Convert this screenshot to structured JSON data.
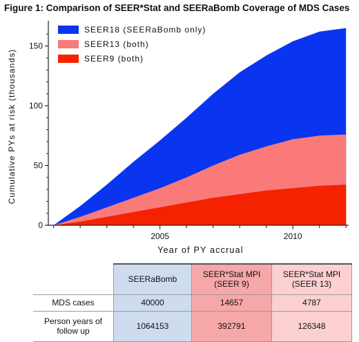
{
  "figure_title": "Figure 1: Comparison of SEER*Stat and SEERaBomb Coverage of MDS Cases",
  "chart_data": {
    "type": "area",
    "xlabel": "Year of PY accrual",
    "ylabel": "Cumulative PYs at risk (thousands)",
    "xlim": [
      2000.8,
      2012.1
    ],
    "ylim": [
      0,
      170
    ],
    "x_ticks": [
      2005,
      2010
    ],
    "y_ticks": [
      0,
      50,
      100,
      150
    ],
    "stacked": false,
    "grid": false,
    "legend_position": "top-left",
    "x": [
      2001,
      2002,
      2003,
      2004,
      2005,
      2006,
      2007,
      2008,
      2009,
      2010,
      2011,
      2012
    ],
    "series": [
      {
        "name": "SEER18 (SEERaBomb only)",
        "color": "#0a35f0",
        "values": [
          0,
          16,
          34,
          53,
          71,
          90,
          110,
          128,
          142,
          154,
          162,
          165
        ]
      },
      {
        "name": "SEER13 (both)",
        "color": "#fa7a7a",
        "values": [
          0,
          7,
          15,
          23,
          31,
          40,
          50,
          59,
          66,
          72,
          75,
          76
        ]
      },
      {
        "name": "SEER9 (both)",
        "color": "#f52200",
        "values": [
          0,
          3,
          7,
          11,
          15,
          19,
          23,
          26,
          29,
          31,
          33,
          34
        ]
      }
    ]
  },
  "table": {
    "columns": [
      "SEERaBomb",
      "SEER*Stat MPI\n(SEER 9)",
      "SEER*Stat MPI\n(SEER 13)"
    ],
    "rows": [
      {
        "label": "MDS cases",
        "values": [
          "40000",
          "14657",
          "4787"
        ]
      },
      {
        "label": "Person years of\nfollow up",
        "values": [
          "1064153",
          "392791",
          "126348"
        ]
      }
    ]
  }
}
